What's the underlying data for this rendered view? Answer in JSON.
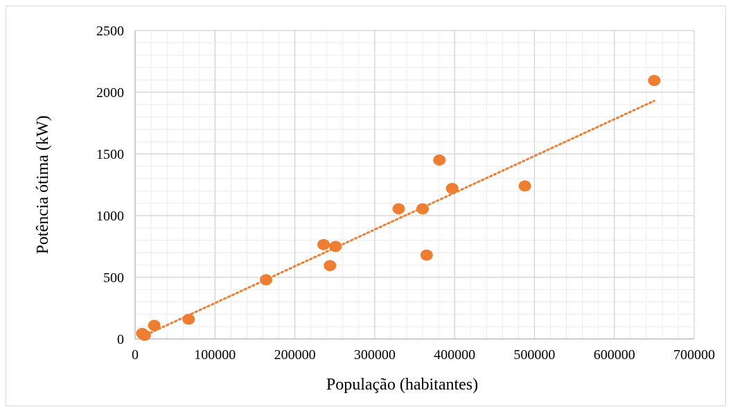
{
  "chart_data": {
    "type": "scatter",
    "xlabel": "População (habitantes)",
    "ylabel": "Potência ótima (kW)",
    "xlim": [
      0,
      700000
    ],
    "ylim": [
      0,
      2500
    ],
    "x_ticks": [
      0,
      100000,
      200000,
      300000,
      400000,
      500000,
      600000,
      700000
    ],
    "y_ticks": [
      0,
      500,
      1000,
      1500,
      2000,
      2500
    ],
    "x_tick_labels": [
      "0",
      "100000",
      "200000",
      "300000",
      "400000",
      "500000",
      "600000",
      "700000"
    ],
    "y_tick_labels": [
      "0",
      "500",
      "1000",
      "1500",
      "2000",
      "2500"
    ],
    "grid": "major and minor",
    "legend": "none",
    "series": [
      {
        "color": "#ed7d31",
        "points": [
          {
            "x": 9000,
            "y": 45
          },
          {
            "x": 12000,
            "y": 30
          },
          {
            "x": 24000,
            "y": 110
          },
          {
            "x": 67000,
            "y": 160
          },
          {
            "x": 164000,
            "y": 480
          },
          {
            "x": 236000,
            "y": 765
          },
          {
            "x": 244000,
            "y": 595
          },
          {
            "x": 251000,
            "y": 750
          },
          {
            "x": 330000,
            "y": 1055
          },
          {
            "x": 360000,
            "y": 1055
          },
          {
            "x": 365000,
            "y": 680
          },
          {
            "x": 381000,
            "y": 1450
          },
          {
            "x": 397000,
            "y": 1220
          },
          {
            "x": 488000,
            "y": 1240
          },
          {
            "x": 650000,
            "y": 2095
          }
        ]
      }
    ],
    "trendline": {
      "type": "linear",
      "style": "dotted",
      "color": "#ed7d31",
      "x_start": 9000,
      "x_end": 650000,
      "y_start": 20,
      "y_end": 1930
    }
  }
}
